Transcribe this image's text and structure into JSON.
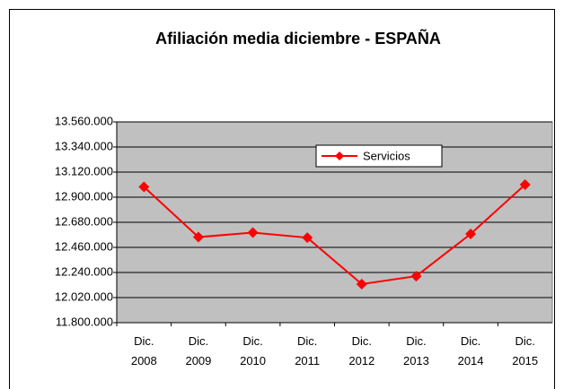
{
  "chart_data": {
    "type": "line",
    "title": "Afiliación media diciembre - ESPAÑA",
    "categories": [
      "Dic. 2008",
      "Dic. 2009",
      "Dic. 2010",
      "Dic. 2011",
      "Dic. 2012",
      "Dic. 2013",
      "Dic. 2014",
      "Dic. 2015"
    ],
    "series": [
      {
        "name": "Servicios",
        "color": "#ff0000",
        "values": [
          12990000,
          12550000,
          12590000,
          12545000,
          12138000,
          12208000,
          12578000,
          13010000
        ]
      }
    ],
    "ylim": [
      11800000,
      13560000
    ],
    "yticks": [
      {
        "value": 11800000,
        "label": "11.800.000"
      },
      {
        "value": 12020000,
        "label": "12.020.000"
      },
      {
        "value": 12240000,
        "label": "12.240.000"
      },
      {
        "value": 12460000,
        "label": "12.460.000"
      },
      {
        "value": 12680000,
        "label": "12.680.000"
      },
      {
        "value": 12900000,
        "label": "12.900.000"
      },
      {
        "value": 13120000,
        "label": "13.120.000"
      },
      {
        "value": 13340000,
        "label": "13.340.000"
      },
      {
        "value": 13560000,
        "label": "13.560.000"
      }
    ],
    "grid": true,
    "plot_background": "#c0c0c0",
    "legend": "upper center"
  }
}
